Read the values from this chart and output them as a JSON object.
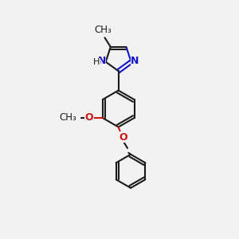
{
  "bg_color": "#f2f2f2",
  "bond_color": "#1a1a1a",
  "n_color": "#1414cc",
  "o_color": "#cc1414",
  "lw": 1.5,
  "dbo": 0.12,
  "fs": 9,
  "fss": 8,
  "figsize": [
    3.0,
    3.0
  ],
  "dpi": 100,
  "xlim": [
    -1.0,
    5.5
  ],
  "ylim": [
    -0.5,
    10.5
  ]
}
